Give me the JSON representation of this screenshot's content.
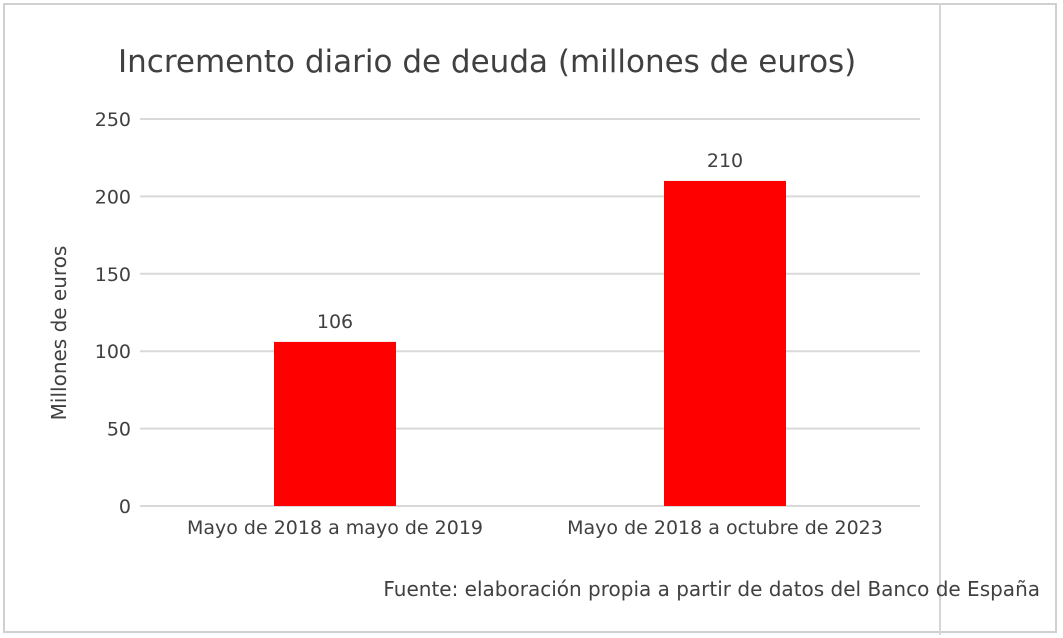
{
  "chart_data": {
    "type": "bar",
    "title": "Incremento diario de deuda (millones de euros)",
    "xlabel": "",
    "ylabel": "Millones de euros",
    "categories": [
      "Mayo de 2018 a mayo de 2019",
      "Mayo de 2018 a octubre de 2023"
    ],
    "values": [
      106,
      210
    ],
    "data_labels": [
      "106",
      "210"
    ],
    "ylim": [
      0,
      250
    ],
    "yticks": [
      0,
      50,
      100,
      150,
      200,
      250
    ],
    "grid": true,
    "legend": "none",
    "bar_color": "#ff0000",
    "source": "Fuente: elaboración propia a partir de datos del Banco de España"
  }
}
